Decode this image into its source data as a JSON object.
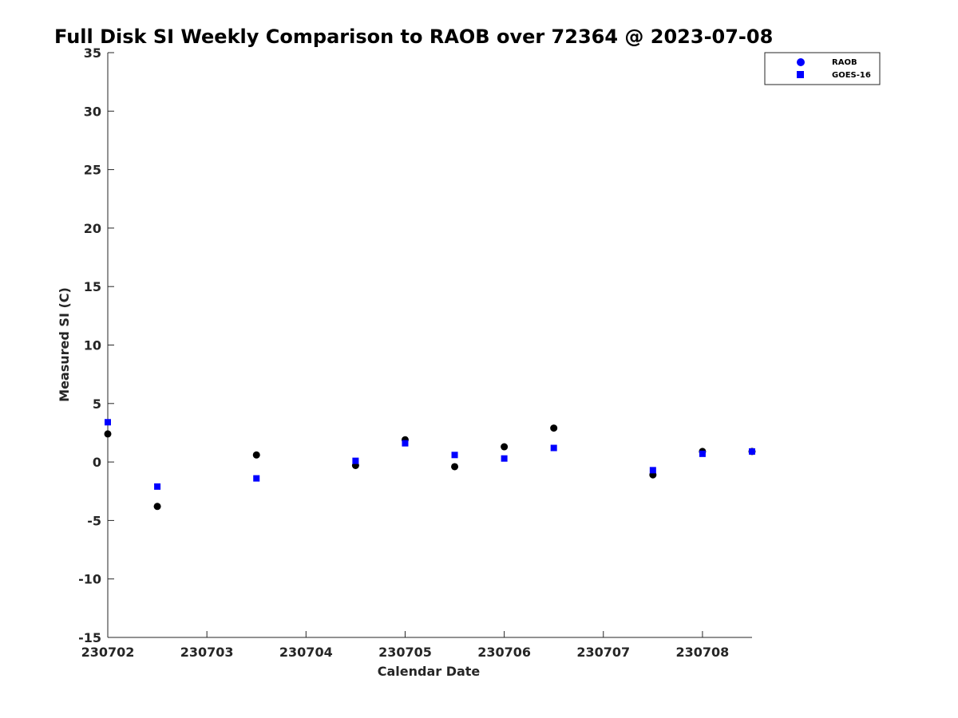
{
  "chart_data": {
    "type": "scatter",
    "title": "Full Disk SI Weekly Comparison to RAOB over 72364 @ 2023-07-08",
    "xlabel": "Calendar Date",
    "ylabel": "Measured SI (C)",
    "x_ticks": [
      "230702",
      "230703",
      "230704",
      "230705",
      "230706",
      "230707",
      "230708"
    ],
    "xlim": [
      "230702 00Z",
      "230708 12Z"
    ],
    "ylim": [
      -15,
      35
    ],
    "y_ticks": [
      "-15",
      "-10",
      "-5",
      "0",
      "5",
      "10",
      "15",
      "20",
      "25",
      "30",
      "35"
    ],
    "grid": false,
    "legend_position": "top-right",
    "series": [
      {
        "name": "RAOB",
        "marker": "circle",
        "color": "#000000",
        "x": [
          "230702 00Z",
          "230702 12Z",
          "230703 12Z",
          "230704 12Z",
          "230705 00Z",
          "230705 12Z",
          "230706 00Z",
          "230706 12Z",
          "230707 12Z",
          "230708 00Z",
          "230708 12Z"
        ],
        "y": [
          2.4,
          -3.8,
          0.6,
          -0.3,
          1.9,
          -0.4,
          1.3,
          2.9,
          -1.1,
          0.9,
          0.9
        ]
      },
      {
        "name": "GOES-16",
        "marker": "square",
        "color": "#0000ff",
        "x": [
          "230702 00Z",
          "230702 12Z",
          "230703 12Z",
          "230704 12Z",
          "230705 00Z",
          "230705 12Z",
          "230706 00Z",
          "230706 12Z",
          "230707 12Z",
          "230708 00Z",
          "230708 12Z"
        ],
        "y": [
          3.4,
          -2.1,
          -1.4,
          0.1,
          1.6,
          0.6,
          0.3,
          1.2,
          -0.7,
          0.7,
          0.9
        ]
      }
    ],
    "legend_colors": {
      "raob_icon": "#0000ff",
      "goes_icon": "#0000ff"
    }
  }
}
